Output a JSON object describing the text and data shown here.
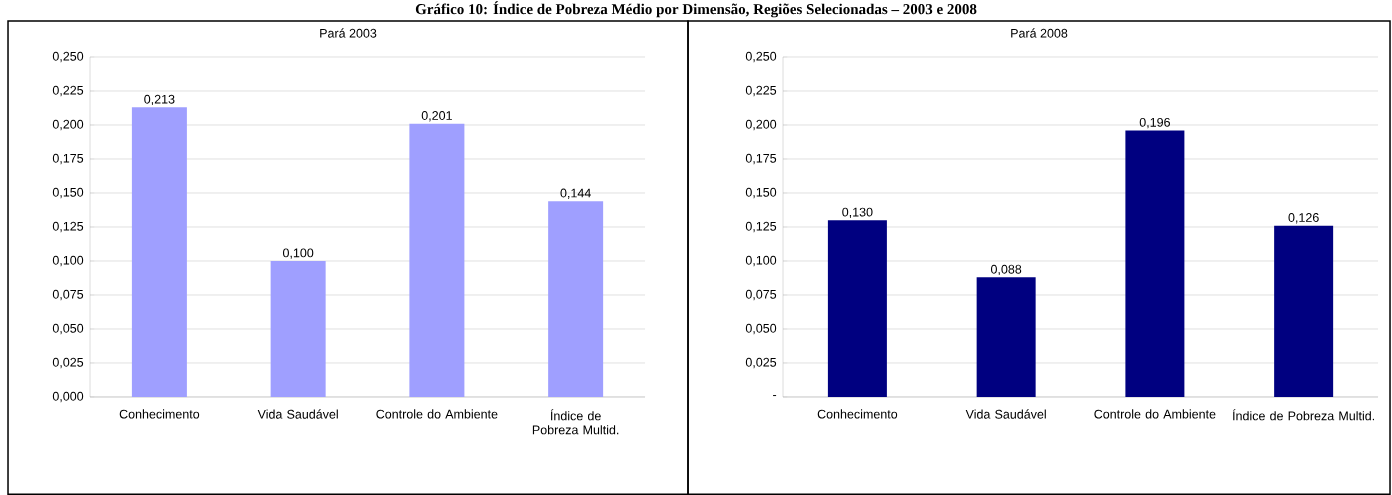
{
  "chart_data": [
    {
      "type": "bar",
      "title": "Pará 2003",
      "annotations": [
        "Gráfico 10: Índice de Pobreza Médio por Dimensão, Regiões Selecionadas – 2003 e 2008"
      ],
      "categories": [
        "Conhecimento",
        "Vida Saudável",
        "Controle do Ambiente",
        "Índice de Pobreza Multid."
      ],
      "values": [
        0.213,
        0.1,
        0.201,
        0.144
      ],
      "value_labels": [
        "0,213",
        "0,100",
        "0,201",
        "0,144"
      ],
      "color": "#9f9fff",
      "ylim": [
        0,
        0.25
      ],
      "yticks": [
        {
          "value": 0,
          "label": "0,000"
        },
        {
          "value": 0.025,
          "label": "0,025"
        },
        {
          "value": 0.05,
          "label": "0,050"
        },
        {
          "value": 0.075,
          "label": "0,075"
        },
        {
          "value": 0.1,
          "label": "0,100"
        },
        {
          "value": 0.125,
          "label": "0,125"
        },
        {
          "value": 0.15,
          "label": "0,150"
        },
        {
          "value": 0.175,
          "label": "0,175"
        },
        {
          "value": 0.2,
          "label": "0,200"
        },
        {
          "value": 0.225,
          "label": "0,225"
        },
        {
          "value": 0.25,
          "label": "0,250"
        }
      ],
      "grid": "y"
    },
    {
      "type": "bar",
      "title": "Pará  2008",
      "categories": [
        "Conhecimento",
        "Vida Saudável",
        "Controle do Ambiente",
        "Índice de Pobreza Multid."
      ],
      "values": [
        0.13,
        0.088,
        0.196,
        0.126
      ],
      "value_labels": [
        "0,130",
        "0,088",
        "0,196",
        "0,126"
      ],
      "color": "#000080",
      "ylim": [
        0,
        0.25
      ],
      "yticks": [
        {
          "value": 0,
          "label": "-"
        },
        {
          "value": 0.025,
          "label": "0,025"
        },
        {
          "value": 0.05,
          "label": "0,050"
        },
        {
          "value": 0.075,
          "label": "0,075"
        },
        {
          "value": 0.1,
          "label": "0,100"
        },
        {
          "value": 0.125,
          "label": "0,125"
        },
        {
          "value": 0.15,
          "label": "0,150"
        },
        {
          "value": 0.175,
          "label": "0,175"
        },
        {
          "value": 0.2,
          "label": "0,200"
        },
        {
          "value": 0.225,
          "label": "0,225"
        },
        {
          "value": 0.25,
          "label": "0,250"
        }
      ],
      "grid": "y"
    }
  ]
}
